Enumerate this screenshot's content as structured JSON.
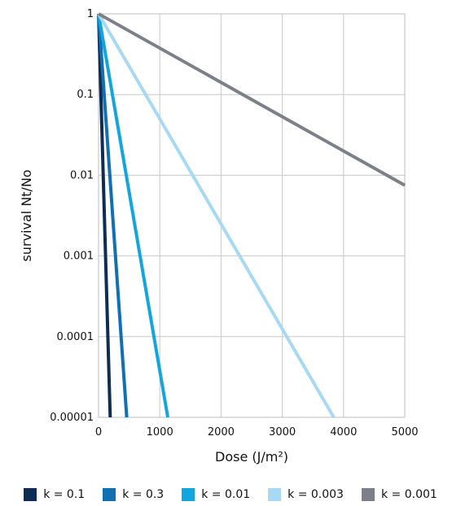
{
  "chart_data": {
    "type": "line",
    "title": "",
    "xlabel": "Dose (J/m²)",
    "ylabel": "survival Nt/No",
    "xlim": [
      0,
      5000
    ],
    "ylim": [
      1e-05,
      1
    ],
    "yscale": "log",
    "grid": true,
    "legend_position": "bottom",
    "x_ticks": [
      "0",
      "1000",
      "2000",
      "3000",
      "4000",
      "5000"
    ],
    "x_tick_values": [
      0,
      1000,
      2000,
      3000,
      4000,
      5000
    ],
    "y_ticks": [
      "1",
      "0.1",
      "0.01",
      "0.001",
      "0.0001",
      "0.00001"
    ],
    "y_tick_values": [
      1,
      0.1,
      0.01,
      0.001,
      0.0001,
      1e-05
    ],
    "series": [
      {
        "name": "k = 0.1",
        "color": "#0d2d55",
        "x": [
          0,
          190
        ],
        "y": [
          1,
          1e-05
        ]
      },
      {
        "name": "k = 0.3",
        "color": "#1170b4",
        "x": [
          0,
          460
        ],
        "y": [
          1,
          1e-05
        ]
      },
      {
        "name": "k = 0.01",
        "color": "#13a5dd",
        "x": [
          0,
          1130
        ],
        "y": [
          1,
          1e-05
        ]
      },
      {
        "name": "k = 0.003",
        "color": "#a7d9f2",
        "x": [
          0,
          3840
        ],
        "y": [
          1,
          1e-05
        ]
      },
      {
        "name": "k = 0.001",
        "color": "#7d8089",
        "x": [
          0,
          5000
        ],
        "y": [
          1,
          0.0075
        ]
      }
    ]
  }
}
